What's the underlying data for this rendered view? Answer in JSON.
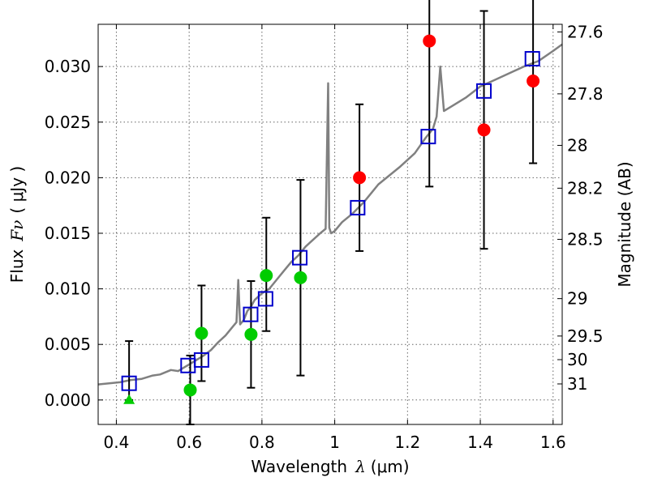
{
  "chart_data": {
    "type": "scatter",
    "xlabel_text": "Wavelength",
    "xlabel_symbol": "λ",
    "xlabel_unit": "(μm)",
    "ylabel_text": "Flux",
    "ylabel_symbol": "Fν",
    "ylabel_unit": "( μJy )",
    "y2label": "Magnitude (AB)",
    "xlim": [
      0.35,
      1.625
    ],
    "ylim": [
      -0.0022,
      0.0338
    ],
    "grid": true,
    "x_ticks": [
      0.4,
      0.6,
      0.8,
      1.0,
      1.2,
      1.4,
      1.6
    ],
    "x_tick_labels": [
      "0.4",
      "0.6",
      "0.8",
      "1",
      "1.2",
      "1.4",
      "1.6"
    ],
    "y_ticks": [
      0.0,
      0.005,
      0.01,
      0.015,
      0.02,
      0.025,
      0.03
    ],
    "y_tick_labels": [
      "0.000",
      "0.005",
      "0.010",
      "0.015",
      "0.020",
      "0.025",
      "0.030"
    ],
    "mag_ticks": [
      27.6,
      27.8,
      28,
      28.2,
      28.5,
      29,
      29.5,
      30,
      31
    ],
    "mag_tick_labels": [
      "27.6",
      "27.8",
      "28",
      "28.2",
      "28.5",
      "29",
      "29.5",
      "30",
      "31"
    ],
    "series": [
      {
        "kind": "model-spectrum",
        "color": "#808080",
        "x": [
          0.35,
          0.38,
          0.41,
          0.44,
          0.47,
          0.5,
          0.52,
          0.55,
          0.57,
          0.59,
          0.6,
          0.62,
          0.64,
          0.66,
          0.68,
          0.7,
          0.71,
          0.72,
          0.73,
          0.735,
          0.74,
          0.75,
          0.76,
          0.77,
          0.78,
          0.8,
          0.82,
          0.84,
          0.86,
          0.88,
          0.9,
          0.92,
          0.94,
          0.96,
          0.975,
          0.982,
          0.985,
          0.99,
          1.0,
          1.02,
          1.05,
          1.08,
          1.1,
          1.12,
          1.15,
          1.18,
          1.2,
          1.22,
          1.25,
          1.27,
          1.28,
          1.29,
          1.3,
          1.31,
          1.33,
          1.36,
          1.4,
          1.44,
          1.48,
          1.52,
          1.56,
          1.6,
          1.625
        ],
        "y": [
          0.0014,
          0.0015,
          0.0016,
          0.0018,
          0.0019,
          0.0022,
          0.0023,
          0.0027,
          0.0026,
          0.003,
          0.0032,
          0.0036,
          0.004,
          0.0045,
          0.0052,
          0.0058,
          0.0062,
          0.0066,
          0.007,
          0.0108,
          0.0068,
          0.0072,
          0.008,
          0.0084,
          0.009,
          0.0096,
          0.01,
          0.0108,
          0.0116,
          0.0124,
          0.013,
          0.0138,
          0.0144,
          0.015,
          0.0154,
          0.0285,
          0.0155,
          0.015,
          0.0152,
          0.016,
          0.0168,
          0.0178,
          0.0186,
          0.0194,
          0.0202,
          0.021,
          0.0216,
          0.0222,
          0.0236,
          0.0244,
          0.0255,
          0.03,
          0.026,
          0.0262,
          0.0266,
          0.0272,
          0.0282,
          0.0288,
          0.0294,
          0.03,
          0.0305,
          0.0314,
          0.032
        ]
      },
      {
        "kind": "model-photometry",
        "marker": "open-square",
        "color": "#0000cc",
        "x": [
          0.435,
          0.597,
          0.634,
          0.769,
          0.81,
          0.904,
          1.063,
          1.257,
          1.41,
          1.543
        ],
        "y": [
          0.0015,
          0.0031,
          0.0036,
          0.0077,
          0.0091,
          0.0128,
          0.0173,
          0.0237,
          0.0278,
          0.0307
        ]
      },
      {
        "kind": "detections",
        "marker": "filled-circle",
        "color": "#ff0000",
        "x": [
          1.068,
          1.26,
          1.41,
          1.545
        ],
        "y": [
          0.02,
          0.0323,
          0.0243,
          0.0287
        ],
        "err_low": [
          0.0066,
          0.0131,
          0.0107,
          0.0074
        ],
        "err_high": [
          0.0066,
          0.0131,
          0.0107,
          0.0074
        ]
      },
      {
        "kind": "detections",
        "marker": "filled-circle",
        "color": "#00cc00",
        "x": [
          0.603,
          0.634,
          0.77,
          0.812,
          0.906
        ],
        "y": [
          0.0009,
          0.006,
          0.0059,
          0.0112,
          0.011
        ],
        "err_low": [
          0.0031,
          0.0043,
          0.0048,
          0.005,
          0.0088
        ],
        "err_high": [
          0.0031,
          0.0043,
          0.0048,
          0.0052,
          0.0088
        ]
      },
      {
        "kind": "upper-limit",
        "marker": "filled-triangle",
        "color": "#00cc00",
        "x": [
          0.435
        ],
        "y": [
          0.0
        ],
        "err_low": [
          0.0
        ],
        "err_high": [
          0.0053
        ]
      }
    ],
    "errorbar_color": "#000000"
  }
}
